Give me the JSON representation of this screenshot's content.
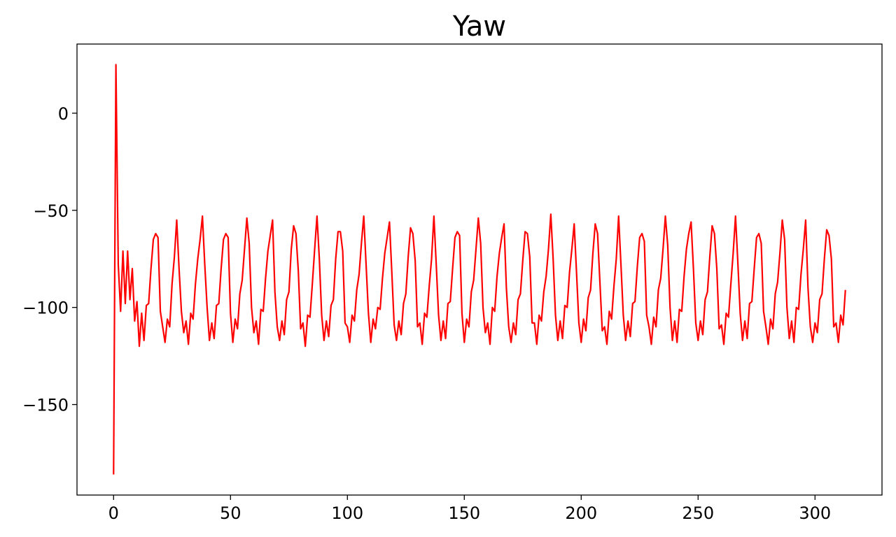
{
  "chart_data": {
    "type": "line",
    "title": "Yaw",
    "color": "#ff0000",
    "xlim": [
      -15.65,
      328.65
    ],
    "ylim": [
      -196.6,
      35.6
    ],
    "xticks": [
      0,
      50,
      100,
      150,
      200,
      250,
      300
    ],
    "yticks": [
      0,
      {
        "value": -50,
        "label": "−50"
      },
      {
        "value": -100,
        "label": "−100"
      },
      {
        "value": -150,
        "label": "−150"
      }
    ],
    "grid": false,
    "x": [
      0,
      1,
      2,
      3,
      4,
      5,
      6,
      7,
      8,
      9,
      10,
      11,
      12,
      13,
      14,
      15,
      16,
      17,
      18,
      19,
      20,
      21,
      22,
      23,
      24,
      25,
      26,
      27,
      28,
      29,
      30,
      31,
      32,
      33,
      34,
      35,
      36,
      37,
      38,
      39,
      40,
      41,
      42,
      43,
      44,
      45,
      46,
      47,
      48,
      49,
      50,
      51,
      52,
      53,
      54,
      55,
      56,
      57,
      58,
      59,
      60,
      61,
      62,
      63,
      64,
      65,
      66,
      67,
      68,
      69,
      70,
      71,
      72,
      73,
      74,
      75,
      76,
      77,
      78,
      79,
      80,
      81,
      82,
      83,
      84,
      85,
      86,
      87,
      88,
      89,
      90,
      91,
      92,
      93,
      94,
      95,
      96,
      97,
      98,
      99,
      100,
      101,
      102,
      103,
      104,
      105,
      106,
      107,
      108,
      109,
      110,
      111,
      112,
      113,
      114,
      115,
      116,
      117,
      118,
      119,
      120,
      121,
      122,
      123,
      124,
      125,
      126,
      127,
      128,
      129,
      130,
      131,
      132,
      133,
      134,
      135,
      136,
      137,
      138,
      139,
      140,
      141,
      142,
      143,
      144,
      145,
      146,
      147,
      148,
      149,
      150,
      151,
      152,
      153,
      154,
      155,
      156,
      157,
      158,
      159,
      160,
      161,
      162,
      163,
      164,
      165,
      166,
      167,
      168,
      169,
      170,
      171,
      172,
      173,
      174,
      175,
      176,
      177,
      178,
      179,
      180,
      181,
      182,
      183,
      184,
      185,
      186,
      187,
      188,
      189,
      190,
      191,
      192,
      193,
      194,
      195,
      196,
      197,
      198,
      199,
      200,
      201,
      202,
      203,
      204,
      205,
      206,
      207,
      208,
      209,
      210,
      211,
      212,
      213,
      214,
      215,
      216,
      217,
      218,
      219,
      220,
      221,
      222,
      223,
      224,
      225,
      226,
      227,
      228,
      229,
      230,
      231,
      232,
      233,
      234,
      235,
      236,
      237,
      238,
      239,
      240,
      241,
      242,
      243,
      244,
      245,
      246,
      247,
      248,
      249,
      250,
      251,
      252,
      253,
      254,
      255,
      256,
      257,
      258,
      259,
      260,
      261,
      262,
      263,
      264,
      265,
      266,
      267,
      268,
      269,
      270,
      271,
      272,
      273,
      274,
      275,
      276,
      277,
      278,
      279,
      280,
      281,
      282,
      283,
      284,
      285,
      286,
      287,
      288,
      289,
      290,
      291,
      292,
      293,
      294,
      295,
      296,
      297,
      298,
      299,
      300,
      301,
      302,
      303,
      304,
      305,
      306,
      307,
      308,
      309,
      310,
      311,
      312,
      313
    ],
    "values": [
      -186,
      25,
      -78,
      -102,
      -71,
      -98,
      -71,
      -96,
      -80,
      -107,
      -97,
      -120,
      -103,
      -117,
      -99,
      -98,
      -80,
      -65,
      -62,
      -64,
      -102,
      -110,
      -118,
      -106,
      -110,
      -88,
      -74,
      -55,
      -80,
      -102,
      -113,
      -107,
      -119,
      -103,
      -106,
      -88,
      -75,
      -65,
      -53,
      -78,
      -100,
      -117,
      -108,
      -116,
      -99,
      -98,
      -80,
      -65,
      -62,
      -64,
      -103,
      -118,
      -106,
      -111,
      -93,
      -86,
      -70,
      -54,
      -67,
      -100,
      -113,
      -107,
      -119,
      -101,
      -102,
      -85,
      -71,
      -63,
      -55,
      -92,
      -110,
      -117,
      -107,
      -114,
      -96,
      -92,
      -70,
      -58,
      -62,
      -81,
      -111,
      -108,
      -120,
      -104,
      -105,
      -88,
      -70,
      -53,
      -75,
      -104,
      -117,
      -107,
      -115,
      -99,
      -96,
      -75,
      -61,
      -61,
      -71,
      -108,
      -110,
      -118,
      -104,
      -107,
      -91,
      -83,
      -67,
      -53,
      -78,
      -103,
      -118,
      -106,
      -111,
      -100,
      -101,
      -85,
      -72,
      -64,
      -56,
      -82,
      -109,
      -117,
      -107,
      -114,
      -98,
      -93,
      -74,
      -59,
      -62,
      -76,
      -110,
      -108,
      -119,
      -103,
      -105,
      -89,
      -75,
      -53,
      -78,
      -104,
      -117,
      -107,
      -116,
      -98,
      -97,
      -80,
      -64,
      -61,
      -63,
      -103,
      -118,
      -106,
      -110,
      -92,
      -86,
      -70,
      -54,
      -67,
      -100,
      -113,
      -108,
      -119,
      -100,
      -102,
      -84,
      -72,
      -64,
      -57,
      -90,
      -110,
      -118,
      -108,
      -114,
      -96,
      -93,
      -76,
      -61,
      -62,
      -74,
      -108,
      -108,
      -119,
      -104,
      -107,
      -92,
      -84,
      -70,
      -52,
      -75,
      -104,
      -117,
      -107,
      -116,
      -99,
      -100,
      -82,
      -70,
      -57,
      -82,
      -108,
      -118,
      -106,
      -112,
      -95,
      -91,
      -72,
      -57,
      -62,
      -87,
      -112,
      -110,
      -119,
      -102,
      -106,
      -89,
      -75,
      -53,
      -78,
      -104,
      -117,
      -107,
      -115,
      -98,
      -97,
      -79,
      -64,
      -62,
      -66,
      -104,
      -110,
      -119,
      -105,
      -110,
      -91,
      -85,
      -70,
      -53,
      -68,
      -100,
      -117,
      -107,
      -118,
      -101,
      -102,
      -84,
      -70,
      -62,
      -56,
      -80,
      -108,
      -117,
      -107,
      -114,
      -96,
      -92,
      -74,
      -58,
      -62,
      -80,
      -111,
      -109,
      -119,
      -103,
      -105,
      -88,
      -72,
      -53,
      -77,
      -103,
      -117,
      -107,
      -116,
      -98,
      -97,
      -80,
      -64,
      -62,
      -67,
      -102,
      -110,
      -119,
      -106,
      -111,
      -93,
      -87,
      -72,
      -55,
      -65,
      -100,
      -116,
      -107,
      -118,
      -100,
      -101,
      -83,
      -70,
      -55,
      -90,
      -110,
      -118,
      -108,
      -113,
      -96,
      -93,
      -75,
      -60,
      -63,
      -75,
      -110,
      -108,
      -118,
      -104,
      -109,
      -91
    ]
  }
}
